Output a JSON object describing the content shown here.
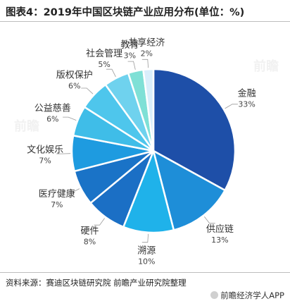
{
  "title": "图表4：2019年中国区块链产业应用分布(单位：%)",
  "source": "资料来源：赛迪区块链研究院 前瞻产业研究院整理",
  "brand": "前瞻经济学人APP",
  "watermark": "前瞻",
  "chart_data": {
    "type": "pie",
    "title": "2019年中国区块链产业应用分布",
    "unit": "%",
    "categories": [
      "金融",
      "供应链",
      "溯源",
      "硬件",
      "医疗健康",
      "文化娱乐",
      "公益慈善",
      "版权保护",
      "社会管理",
      "教育",
      "共享经济"
    ],
    "values": [
      33,
      13,
      10,
      8,
      7,
      7,
      6,
      6,
      5,
      3,
      2
    ],
    "colors": [
      "#1e4fa8",
      "#1e8ed8",
      "#1fb2ea",
      "#1b6fc5",
      "#1a73c7",
      "#1e9be0",
      "#3fbde8",
      "#4ec6ec",
      "#6fd2ee",
      "#7fe0d6",
      "#d9eefb"
    ]
  }
}
